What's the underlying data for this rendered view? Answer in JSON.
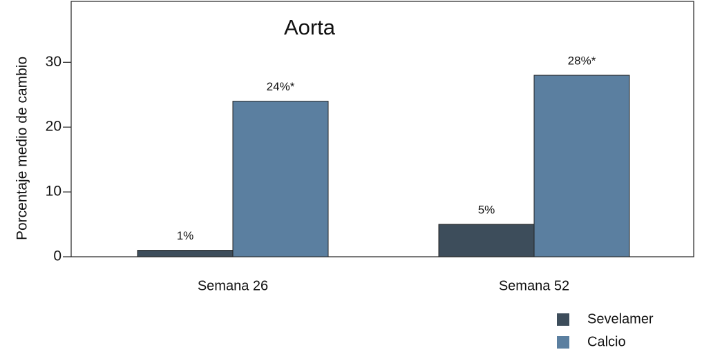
{
  "chart_data": {
    "type": "bar",
    "title": "Aorta",
    "y_label": "Porcentaje medio de cambio",
    "categories": [
      "Semana 26",
      "Semana 52"
    ],
    "series": [
      {
        "name": "Sevelamer",
        "color": "#3d4d5b",
        "values": [
          1,
          5
        ],
        "value_labels": [
          "1%",
          "5%"
        ]
      },
      {
        "name": "Calcio",
        "color": "#5b7fa0",
        "values": [
          24,
          28
        ],
        "value_labels": [
          "24%*",
          "28%*"
        ]
      }
    ],
    "ylim": [
      0,
      39.4
    ],
    "yticks": [
      0,
      10,
      20,
      30
    ],
    "grid": false,
    "legend": "bottom-right"
  }
}
